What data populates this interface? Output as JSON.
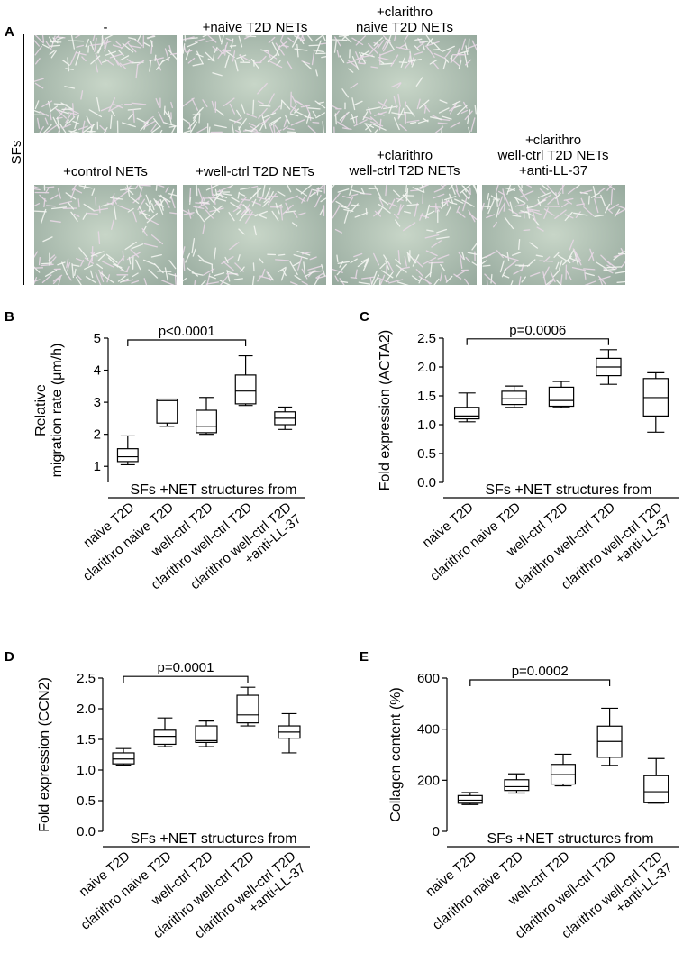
{
  "panel_a": {
    "letter": "A",
    "side_label": "SFs",
    "photos": [
      {
        "label": "-"
      },
      {
        "label": "+naive T2D NETs"
      },
      {
        "label": "+clarithro\nnaive T2D NETs"
      },
      {
        "label": "+control NETs"
      },
      {
        "label": "+well-ctrl T2D NETs"
      },
      {
        "label": "+clarithro\nwell-ctrl T2D NETs"
      },
      {
        "label": "+clarithro\nwell-ctrl T2D NETs\n+anti-LL-37"
      }
    ]
  },
  "chart_data": [
    {
      "panel": "B",
      "type": "box",
      "ylabel": "Relative\nmigration rate (μm/h)",
      "group_label": "SFs +NET structures from",
      "categories": [
        "naive T2D",
        "clarithro naive T2D",
        "well-ctrl T2D",
        "clarithro well-ctrl T2D",
        "clarithro well-ctrl T2D\n+anti-LL-37"
      ],
      "yticks": [
        "1",
        "2",
        "3",
        "4",
        "5"
      ],
      "ylim": [
        0.5,
        5
      ],
      "boxes": [
        {
          "min": 1.05,
          "q1": 1.15,
          "median": 1.3,
          "q3": 1.55,
          "max": 1.95
        },
        {
          "min": 2.25,
          "q1": 2.35,
          "median": 3.05,
          "q3": 3.1,
          "max": 3.1
        },
        {
          "min": 2.0,
          "q1": 2.05,
          "median": 2.25,
          "q3": 2.75,
          "max": 3.15
        },
        {
          "min": 2.9,
          "q1": 2.95,
          "median": 3.35,
          "q3": 3.85,
          "max": 4.45
        },
        {
          "min": 2.15,
          "q1": 2.3,
          "median": 2.5,
          "q3": 2.7,
          "max": 2.85
        }
      ],
      "annotation": {
        "text": "p<0.0001",
        "from": 0,
        "to": 3
      }
    },
    {
      "panel": "C",
      "type": "box",
      "ylabel": "Fold expression (ACTA2)",
      "group_label": "SFs +NET structures from",
      "categories": [
        "naive T2D",
        "clarithro naive T2D",
        "well-ctrl T2D",
        "clarithro well-ctrl T2D",
        "clarithro well-ctrl T2D\n+anti-LL-37"
      ],
      "yticks": [
        "0.0",
        "0.5",
        "1.0",
        "1.5",
        "2.0",
        "2.5"
      ],
      "ylim": [
        0,
        2.5
      ],
      "boxes": [
        {
          "min": 1.05,
          "q1": 1.1,
          "median": 1.15,
          "q3": 1.3,
          "max": 1.55
        },
        {
          "min": 1.3,
          "q1": 1.35,
          "median": 1.45,
          "q3": 1.58,
          "max": 1.67
        },
        {
          "min": 1.3,
          "q1": 1.32,
          "median": 1.42,
          "q3": 1.65,
          "max": 1.75
        },
        {
          "min": 1.7,
          "q1": 1.85,
          "median": 2.0,
          "q3": 2.15,
          "max": 2.3
        },
        {
          "min": 0.87,
          "q1": 1.15,
          "median": 1.47,
          "q3": 1.8,
          "max": 1.9
        }
      ],
      "annotation": {
        "text": "p=0.0006",
        "from": 0,
        "to": 3
      }
    },
    {
      "panel": "D",
      "type": "box",
      "ylabel": "Fold expression (CCN2)",
      "group_label": "SFs +NET structures from",
      "categories": [
        "naive T2D",
        "clarithro naive T2D",
        "well-ctrl T2D",
        "clarithro well-ctrl T2D",
        "clarithro well-ctrl T2D\n+anti-LL-37"
      ],
      "yticks": [
        "0.0",
        "0.5",
        "1.0",
        "1.5",
        "2.0",
        "2.5"
      ],
      "ylim": [
        0,
        2.5
      ],
      "boxes": [
        {
          "min": 1.08,
          "q1": 1.1,
          "median": 1.18,
          "q3": 1.28,
          "max": 1.35
        },
        {
          "min": 1.38,
          "q1": 1.42,
          "median": 1.55,
          "q3": 1.65,
          "max": 1.85
        },
        {
          "min": 1.38,
          "q1": 1.45,
          "median": 1.48,
          "q3": 1.72,
          "max": 1.8
        },
        {
          "min": 1.72,
          "q1": 1.77,
          "median": 1.9,
          "q3": 2.22,
          "max": 2.35
        },
        {
          "min": 1.28,
          "q1": 1.52,
          "median": 1.62,
          "q3": 1.72,
          "max": 1.92
        }
      ],
      "annotation": {
        "text": "p=0.0001",
        "from": 0,
        "to": 3
      }
    },
    {
      "panel": "E",
      "type": "box",
      "ylabel": "Collagen content (%)",
      "group_label": "SFs +NET structures from",
      "categories": [
        "naive T2D",
        "clarithro naive T2D",
        "well-ctrl T2D",
        "clarithro well-ctrl T2D",
        "clarithro well-ctrl T2D\n+anti-LL-37"
      ],
      "yticks": [
        "0",
        "200",
        "400",
        "600"
      ],
      "ylim": [
        0,
        600
      ],
      "boxes": [
        {
          "min": 105,
          "q1": 110,
          "median": 122,
          "q3": 140,
          "max": 152
        },
        {
          "min": 150,
          "q1": 160,
          "median": 175,
          "q3": 202,
          "max": 225
        },
        {
          "min": 178,
          "q1": 185,
          "median": 222,
          "q3": 262,
          "max": 302
        },
        {
          "min": 258,
          "q1": 290,
          "median": 352,
          "q3": 412,
          "max": 482
        },
        {
          "min": 110,
          "q1": 112,
          "median": 155,
          "q3": 218,
          "max": 285
        }
      ],
      "annotation": {
        "text": "p=0.0002",
        "from": 0,
        "to": 3
      }
    }
  ]
}
